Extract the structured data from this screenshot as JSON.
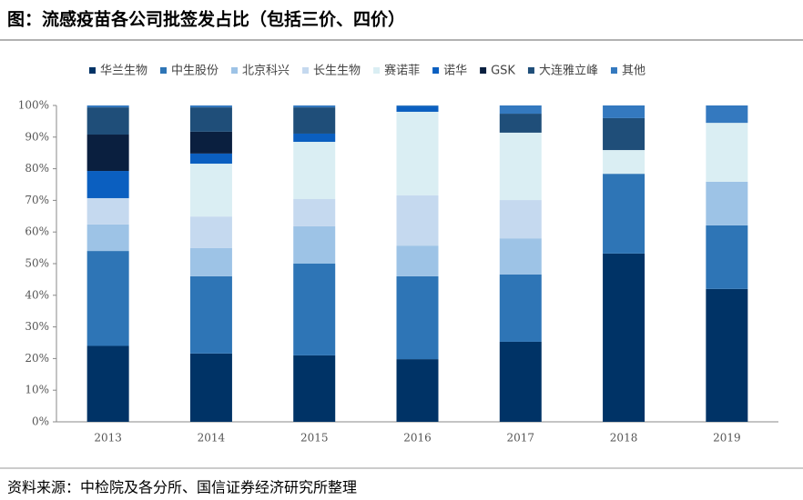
{
  "chart_data": {
    "type": "stacked_bar",
    "title": "图：流感疫苗各公司批签发占比（包括三价、四价）",
    "source": "资料来源：中检院及各分所、国信证券经济研究所整理",
    "categories": [
      "2013",
      "2014",
      "2015",
      "2016",
      "2017",
      "2018",
      "2019"
    ],
    "series": [
      {
        "name": "华兰生物",
        "color": "#003366",
        "values": [
          24,
          21.6,
          21,
          19.8,
          25.3,
          53.2,
          42
        ]
      },
      {
        "name": "中生股份",
        "color": "#2e75b6",
        "values": [
          30,
          24.4,
          29,
          26.2,
          21.3,
          25.2,
          20.1
        ]
      },
      {
        "name": "北京科兴",
        "color": "#9dc3e6",
        "values": [
          8.4,
          8.9,
          11.8,
          9.7,
          11.4,
          0,
          13.8
        ]
      },
      {
        "name": "长生生物",
        "color": "#c5d9ef",
        "values": [
          8.3,
          10,
          8.6,
          15.9,
          12.1,
          0,
          0
        ]
      },
      {
        "name": "赛诺菲",
        "color": "#daeef3",
        "values": [
          0,
          16.7,
          18.1,
          26.4,
          21.3,
          7.5,
          18.6
        ]
      },
      {
        "name": "诺华",
        "color": "#0b5fc0",
        "values": [
          8.6,
          3.2,
          2.6,
          1.7,
          0,
          0,
          0
        ]
      },
      {
        "name": "GSK",
        "color": "#0a1f3f",
        "values": [
          11.5,
          6.9,
          0,
          0,
          0,
          0,
          0
        ]
      },
      {
        "name": "大连雅立峰",
        "color": "#1f4e79",
        "values": [
          8.6,
          7.7,
          8.3,
          0,
          6,
          10.1,
          0
        ]
      },
      {
        "name": "其他",
        "color": "#3479bf",
        "values": [
          0.6,
          0.6,
          0.6,
          0.3,
          2.6,
          4,
          5.5
        ]
      }
    ],
    "ylim": [
      0,
      100
    ],
    "yticks": [
      {
        "value": 0,
        "label": "0%"
      },
      {
        "value": 10,
        "label": "10%"
      },
      {
        "value": 20,
        "label": "20%"
      },
      {
        "value": 30,
        "label": "30%"
      },
      {
        "value": 40,
        "label": "40%"
      },
      {
        "value": 50,
        "label": "50%"
      },
      {
        "value": 60,
        "label": "60%"
      },
      {
        "value": 70,
        "label": "70%"
      },
      {
        "value": 80,
        "label": "80%"
      },
      {
        "value": 90,
        "label": "90%"
      },
      {
        "value": 100,
        "label": "100%"
      }
    ]
  }
}
